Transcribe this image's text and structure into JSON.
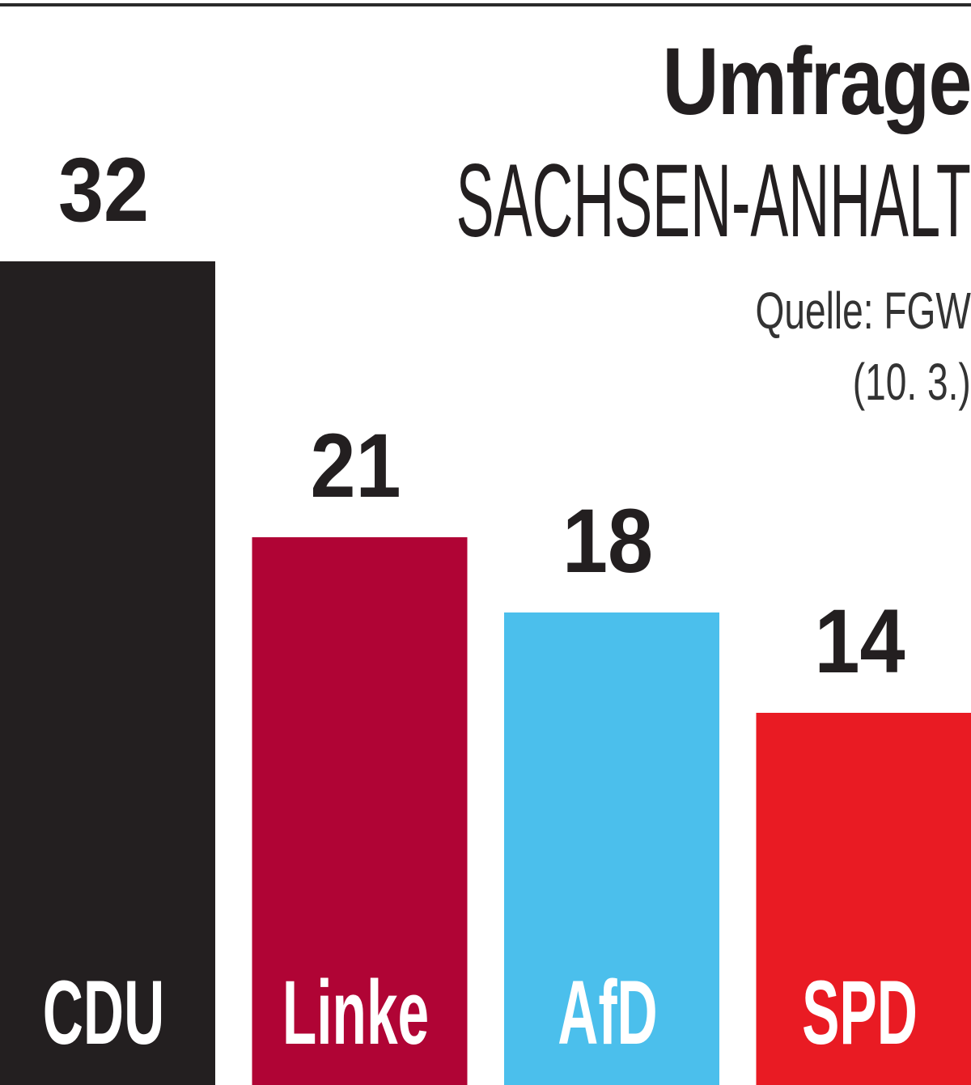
{
  "chart_data": {
    "type": "bar",
    "title": "Umfrage",
    "subtitle": "SACHSEN-ANHALT",
    "source": "Quelle: FGW",
    "date": "(10. 3.)",
    "categories": [
      "CDU",
      "Linke",
      "AfD",
      "SPD"
    ],
    "values": [
      32,
      21,
      18,
      14
    ],
    "value_labels": [
      "32",
      "21",
      "18",
      "14"
    ],
    "colors": [
      "#231f20",
      "#b00435",
      "#4bbfec",
      "#e91b23"
    ],
    "xlabel": "",
    "ylabel": "",
    "grid": false,
    "legend": "none"
  }
}
